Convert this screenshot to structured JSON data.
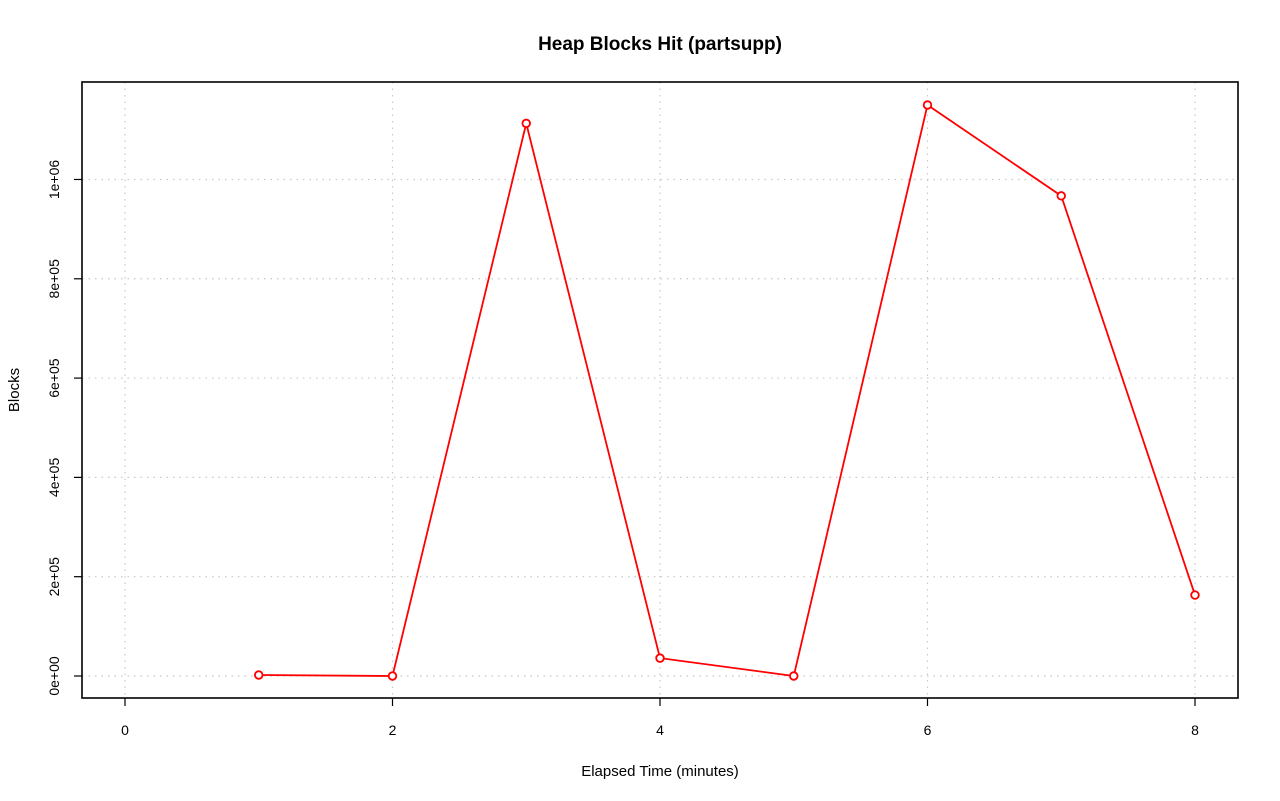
{
  "chart_data": {
    "type": "line",
    "title": "Heap Blocks Hit (partsupp)",
    "xlabel": "Elapsed Time (minutes)",
    "ylabel": "Blocks",
    "xlim": [
      0,
      8
    ],
    "ylim": [
      0,
      1150000
    ],
    "x_ticks": [
      0,
      2,
      4,
      6,
      8
    ],
    "x_tick_labels": [
      "0",
      "2",
      "4",
      "6",
      "8"
    ],
    "y_ticks": [
      0,
      200000,
      400000,
      600000,
      800000,
      1000000
    ],
    "y_tick_labels": [
      "0e+00",
      "2e+05",
      "4e+05",
      "6e+05",
      "8e+05",
      "1e+06"
    ],
    "grid": true,
    "color": "#ff0000",
    "x": [
      1,
      2,
      3,
      4,
      5,
      6,
      7,
      8
    ],
    "y": [
      2000,
      0,
      1113000,
      36000,
      0,
      1150000,
      967000,
      163000
    ]
  }
}
